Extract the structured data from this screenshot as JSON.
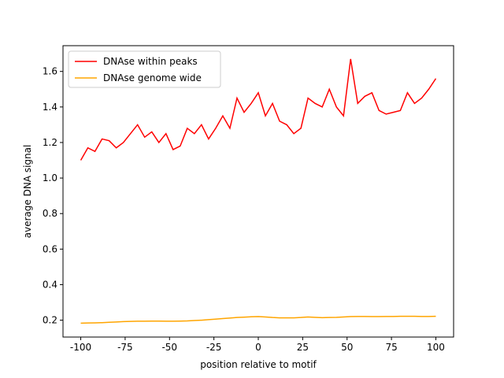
{
  "chart_data": {
    "type": "line",
    "xlabel": "position relative to motif",
    "ylabel": "average DNA signal",
    "x": [
      -100,
      -96,
      -92,
      -88,
      -84,
      -80,
      -76,
      -72,
      -68,
      -64,
      -60,
      -56,
      -52,
      -48,
      -44,
      -40,
      -36,
      -32,
      -28,
      -24,
      -20,
      -16,
      -12,
      -8,
      -4,
      0,
      4,
      8,
      12,
      16,
      20,
      24,
      28,
      32,
      36,
      40,
      44,
      48,
      52,
      56,
      60,
      64,
      68,
      72,
      76,
      80,
      84,
      88,
      92,
      96,
      100
    ],
    "series": [
      {
        "name": "DNAse within peaks",
        "color": "#ff0000",
        "values": [
          1.1,
          1.17,
          1.15,
          1.22,
          1.21,
          1.17,
          1.2,
          1.25,
          1.3,
          1.23,
          1.26,
          1.2,
          1.25,
          1.16,
          1.18,
          1.28,
          1.25,
          1.3,
          1.22,
          1.28,
          1.35,
          1.28,
          1.45,
          1.37,
          1.42,
          1.48,
          1.35,
          1.42,
          1.32,
          1.3,
          1.25,
          1.28,
          1.45,
          1.42,
          1.4,
          1.5,
          1.4,
          1.35,
          1.67,
          1.42,
          1.46,
          1.48,
          1.38,
          1.36,
          1.37,
          1.38,
          1.48,
          1.42,
          1.45,
          1.5,
          1.56
        ]
      },
      {
        "name": "DNAse genome wide",
        "color": "#ffa500",
        "values": [
          0.183,
          0.184,
          0.185,
          0.186,
          0.188,
          0.19,
          0.192,
          0.193,
          0.194,
          0.194,
          0.195,
          0.195,
          0.194,
          0.194,
          0.195,
          0.196,
          0.198,
          0.2,
          0.203,
          0.206,
          0.209,
          0.212,
          0.215,
          0.217,
          0.219,
          0.22,
          0.218,
          0.215,
          0.213,
          0.213,
          0.213,
          0.215,
          0.218,
          0.216,
          0.214,
          0.215,
          0.216,
          0.218,
          0.22,
          0.221,
          0.221,
          0.22,
          0.22,
          0.221,
          0.221,
          0.222,
          0.222,
          0.222,
          0.221,
          0.221,
          0.222
        ]
      }
    ],
    "xlim": [
      -110,
      110
    ],
    "xticks": [
      -100,
      -75,
      -50,
      -25,
      0,
      25,
      50,
      75,
      100
    ],
    "ylim": [
      0.105,
      1.745
    ],
    "yticks": [
      0.2,
      0.4,
      0.6,
      0.8,
      {
        "value": 1.0,
        "label": "1.0"
      },
      1.2,
      1.4,
      1.6
    ],
    "legend": "upper left"
  }
}
